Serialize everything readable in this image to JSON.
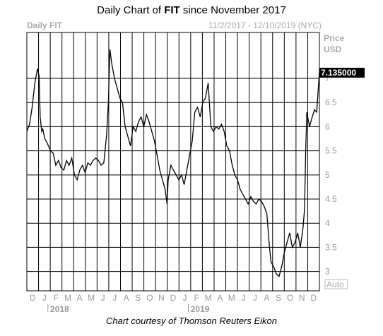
{
  "header": {
    "title_prefix": "Daily Chart of ",
    "title_bold": "FIT",
    "title_suffix": " since November 2017"
  },
  "footer": {
    "text": "Chart courtesy of Thomson Reuters Eikon"
  },
  "chart_data": {
    "type": "line",
    "series_label": "Daily FIT",
    "date_range": "11/2/2017 - 12/10/2019 (NYC)",
    "axis_title_line1": "Price",
    "axis_title_line2": "USD",
    "last_price": "7.135000",
    "auto_label": "Auto",
    "ylim": [
      2.6,
      7.95
    ],
    "y_ticks": [
      "3",
      "3.5",
      "4",
      "4.5",
      "5",
      "5.5",
      "6",
      "6.5",
      "7"
    ],
    "x_months": [
      "D",
      "J",
      "F",
      "M",
      "A",
      "M",
      "J",
      "J",
      "A",
      "S",
      "O",
      "N",
      "D",
      "J",
      "F",
      "M",
      "A",
      "M",
      "J",
      "J",
      "A",
      "S",
      "O",
      "N",
      "D"
    ],
    "x_years": [
      "2018",
      "2019"
    ],
    "grid": true,
    "colors": {
      "line": "#000000",
      "grid": "#000000",
      "badge_bg": "#000000",
      "badge_text": "#ffffff",
      "axis_text": "#999999"
    },
    "x_range": [
      "2017-11-02",
      "2019-12-10"
    ],
    "points": [
      [
        "2017-11-02",
        5.9
      ],
      [
        "2017-11-09",
        6.05
      ],
      [
        "2017-11-16",
        6.4
      ],
      [
        "2017-11-23",
        6.9
      ],
      [
        "2017-11-30",
        7.2
      ],
      [
        "2017-12-04",
        7.05
      ],
      [
        "2017-12-07",
        6.2
      ],
      [
        "2017-12-11",
        5.9
      ],
      [
        "2017-12-14",
        5.95
      ],
      [
        "2017-12-19",
        5.75
      ],
      [
        "2017-12-26",
        5.65
      ],
      [
        "2018-01-03",
        5.5
      ],
      [
        "2018-01-10",
        5.45
      ],
      [
        "2018-01-17",
        5.2
      ],
      [
        "2018-01-24",
        5.3
      ],
      [
        "2018-01-31",
        5.15
      ],
      [
        "2018-02-07",
        5.1
      ],
      [
        "2018-02-14",
        5.3
      ],
      [
        "2018-02-21",
        5.2
      ],
      [
        "2018-02-28",
        5.35
      ],
      [
        "2018-03-07",
        5.0
      ],
      [
        "2018-03-14",
        4.9
      ],
      [
        "2018-03-21",
        5.1
      ],
      [
        "2018-03-28",
        5.2
      ],
      [
        "2018-04-04",
        5.05
      ],
      [
        "2018-04-11",
        5.25
      ],
      [
        "2018-04-18",
        5.2
      ],
      [
        "2018-04-25",
        5.3
      ],
      [
        "2018-05-02",
        5.35
      ],
      [
        "2018-05-09",
        5.3
      ],
      [
        "2018-05-16",
        5.2
      ],
      [
        "2018-05-23",
        5.25
      ],
      [
        "2018-05-30",
        5.8
      ],
      [
        "2018-06-04",
        6.5
      ],
      [
        "2018-06-08",
        7.6
      ],
      [
        "2018-06-13",
        7.3
      ],
      [
        "2018-06-20",
        7.0
      ],
      [
        "2018-06-27",
        6.8
      ],
      [
        "2018-07-04",
        6.6
      ],
      [
        "2018-07-11",
        6.5
      ],
      [
        "2018-07-18",
        6.0
      ],
      [
        "2018-07-25",
        5.8
      ],
      [
        "2018-08-01",
        5.6
      ],
      [
        "2018-08-08",
        6.0
      ],
      [
        "2018-08-15",
        5.9
      ],
      [
        "2018-08-22",
        6.1
      ],
      [
        "2018-08-29",
        6.2
      ],
      [
        "2018-09-05",
        6.0
      ],
      [
        "2018-09-12",
        6.25
      ],
      [
        "2018-09-19",
        6.1
      ],
      [
        "2018-09-26",
        5.9
      ],
      [
        "2018-10-03",
        5.7
      ],
      [
        "2018-10-10",
        5.4
      ],
      [
        "2018-10-17",
        5.1
      ],
      [
        "2018-10-24",
        4.9
      ],
      [
        "2018-10-31",
        4.7
      ],
      [
        "2018-11-05",
        4.4
      ],
      [
        "2018-11-08",
        4.9
      ],
      [
        "2018-11-15",
        5.2
      ],
      [
        "2018-11-22",
        5.1
      ],
      [
        "2018-11-29",
        5.0
      ],
      [
        "2018-12-06",
        4.9
      ],
      [
        "2018-12-13",
        5.0
      ],
      [
        "2018-12-20",
        4.8
      ],
      [
        "2018-12-27",
        5.1
      ],
      [
        "2019-01-03",
        5.4
      ],
      [
        "2019-01-10",
        5.7
      ],
      [
        "2019-01-17",
        6.3
      ],
      [
        "2019-01-24",
        6.4
      ],
      [
        "2019-01-31",
        6.2
      ],
      [
        "2019-02-07",
        6.5
      ],
      [
        "2019-02-14",
        6.6
      ],
      [
        "2019-02-21",
        6.9
      ],
      [
        "2019-02-28",
        6.0
      ],
      [
        "2019-03-07",
        5.9
      ],
      [
        "2019-03-14",
        6.0
      ],
      [
        "2019-03-21",
        5.95
      ],
      [
        "2019-03-28",
        6.05
      ],
      [
        "2019-04-04",
        5.9
      ],
      [
        "2019-04-11",
        5.6
      ],
      [
        "2019-04-18",
        5.5
      ],
      [
        "2019-04-25",
        5.2
      ],
      [
        "2019-05-02",
        5.0
      ],
      [
        "2019-05-09",
        4.9
      ],
      [
        "2019-05-16",
        4.7
      ],
      [
        "2019-05-23",
        4.6
      ],
      [
        "2019-05-30",
        4.5
      ],
      [
        "2019-06-06",
        4.4
      ],
      [
        "2019-06-13",
        4.55
      ],
      [
        "2019-06-20",
        4.45
      ],
      [
        "2019-06-27",
        4.4
      ],
      [
        "2019-07-04",
        4.5
      ],
      [
        "2019-07-11",
        4.45
      ],
      [
        "2019-07-18",
        4.35
      ],
      [
        "2019-07-25",
        4.2
      ],
      [
        "2019-08-01",
        3.5
      ],
      [
        "2019-08-05",
        3.2
      ],
      [
        "2019-08-12",
        3.1
      ],
      [
        "2019-08-19",
        2.95
      ],
      [
        "2019-08-26",
        2.9
      ],
      [
        "2019-09-02",
        3.1
      ],
      [
        "2019-09-09",
        3.4
      ],
      [
        "2019-09-16",
        3.6
      ],
      [
        "2019-09-23",
        3.8
      ],
      [
        "2019-09-30",
        3.5
      ],
      [
        "2019-10-07",
        3.6
      ],
      [
        "2019-10-14",
        3.8
      ],
      [
        "2019-10-21",
        3.5
      ],
      [
        "2019-10-28",
        3.9
      ],
      [
        "2019-11-01",
        4.3
      ],
      [
        "2019-11-04",
        5.5
      ],
      [
        "2019-11-07",
        6.3
      ],
      [
        "2019-11-14",
        6.0
      ],
      [
        "2019-11-21",
        6.2
      ],
      [
        "2019-11-27",
        6.35
      ],
      [
        "2019-12-03",
        6.3
      ],
      [
        "2019-12-10",
        7.135
      ]
    ]
  }
}
